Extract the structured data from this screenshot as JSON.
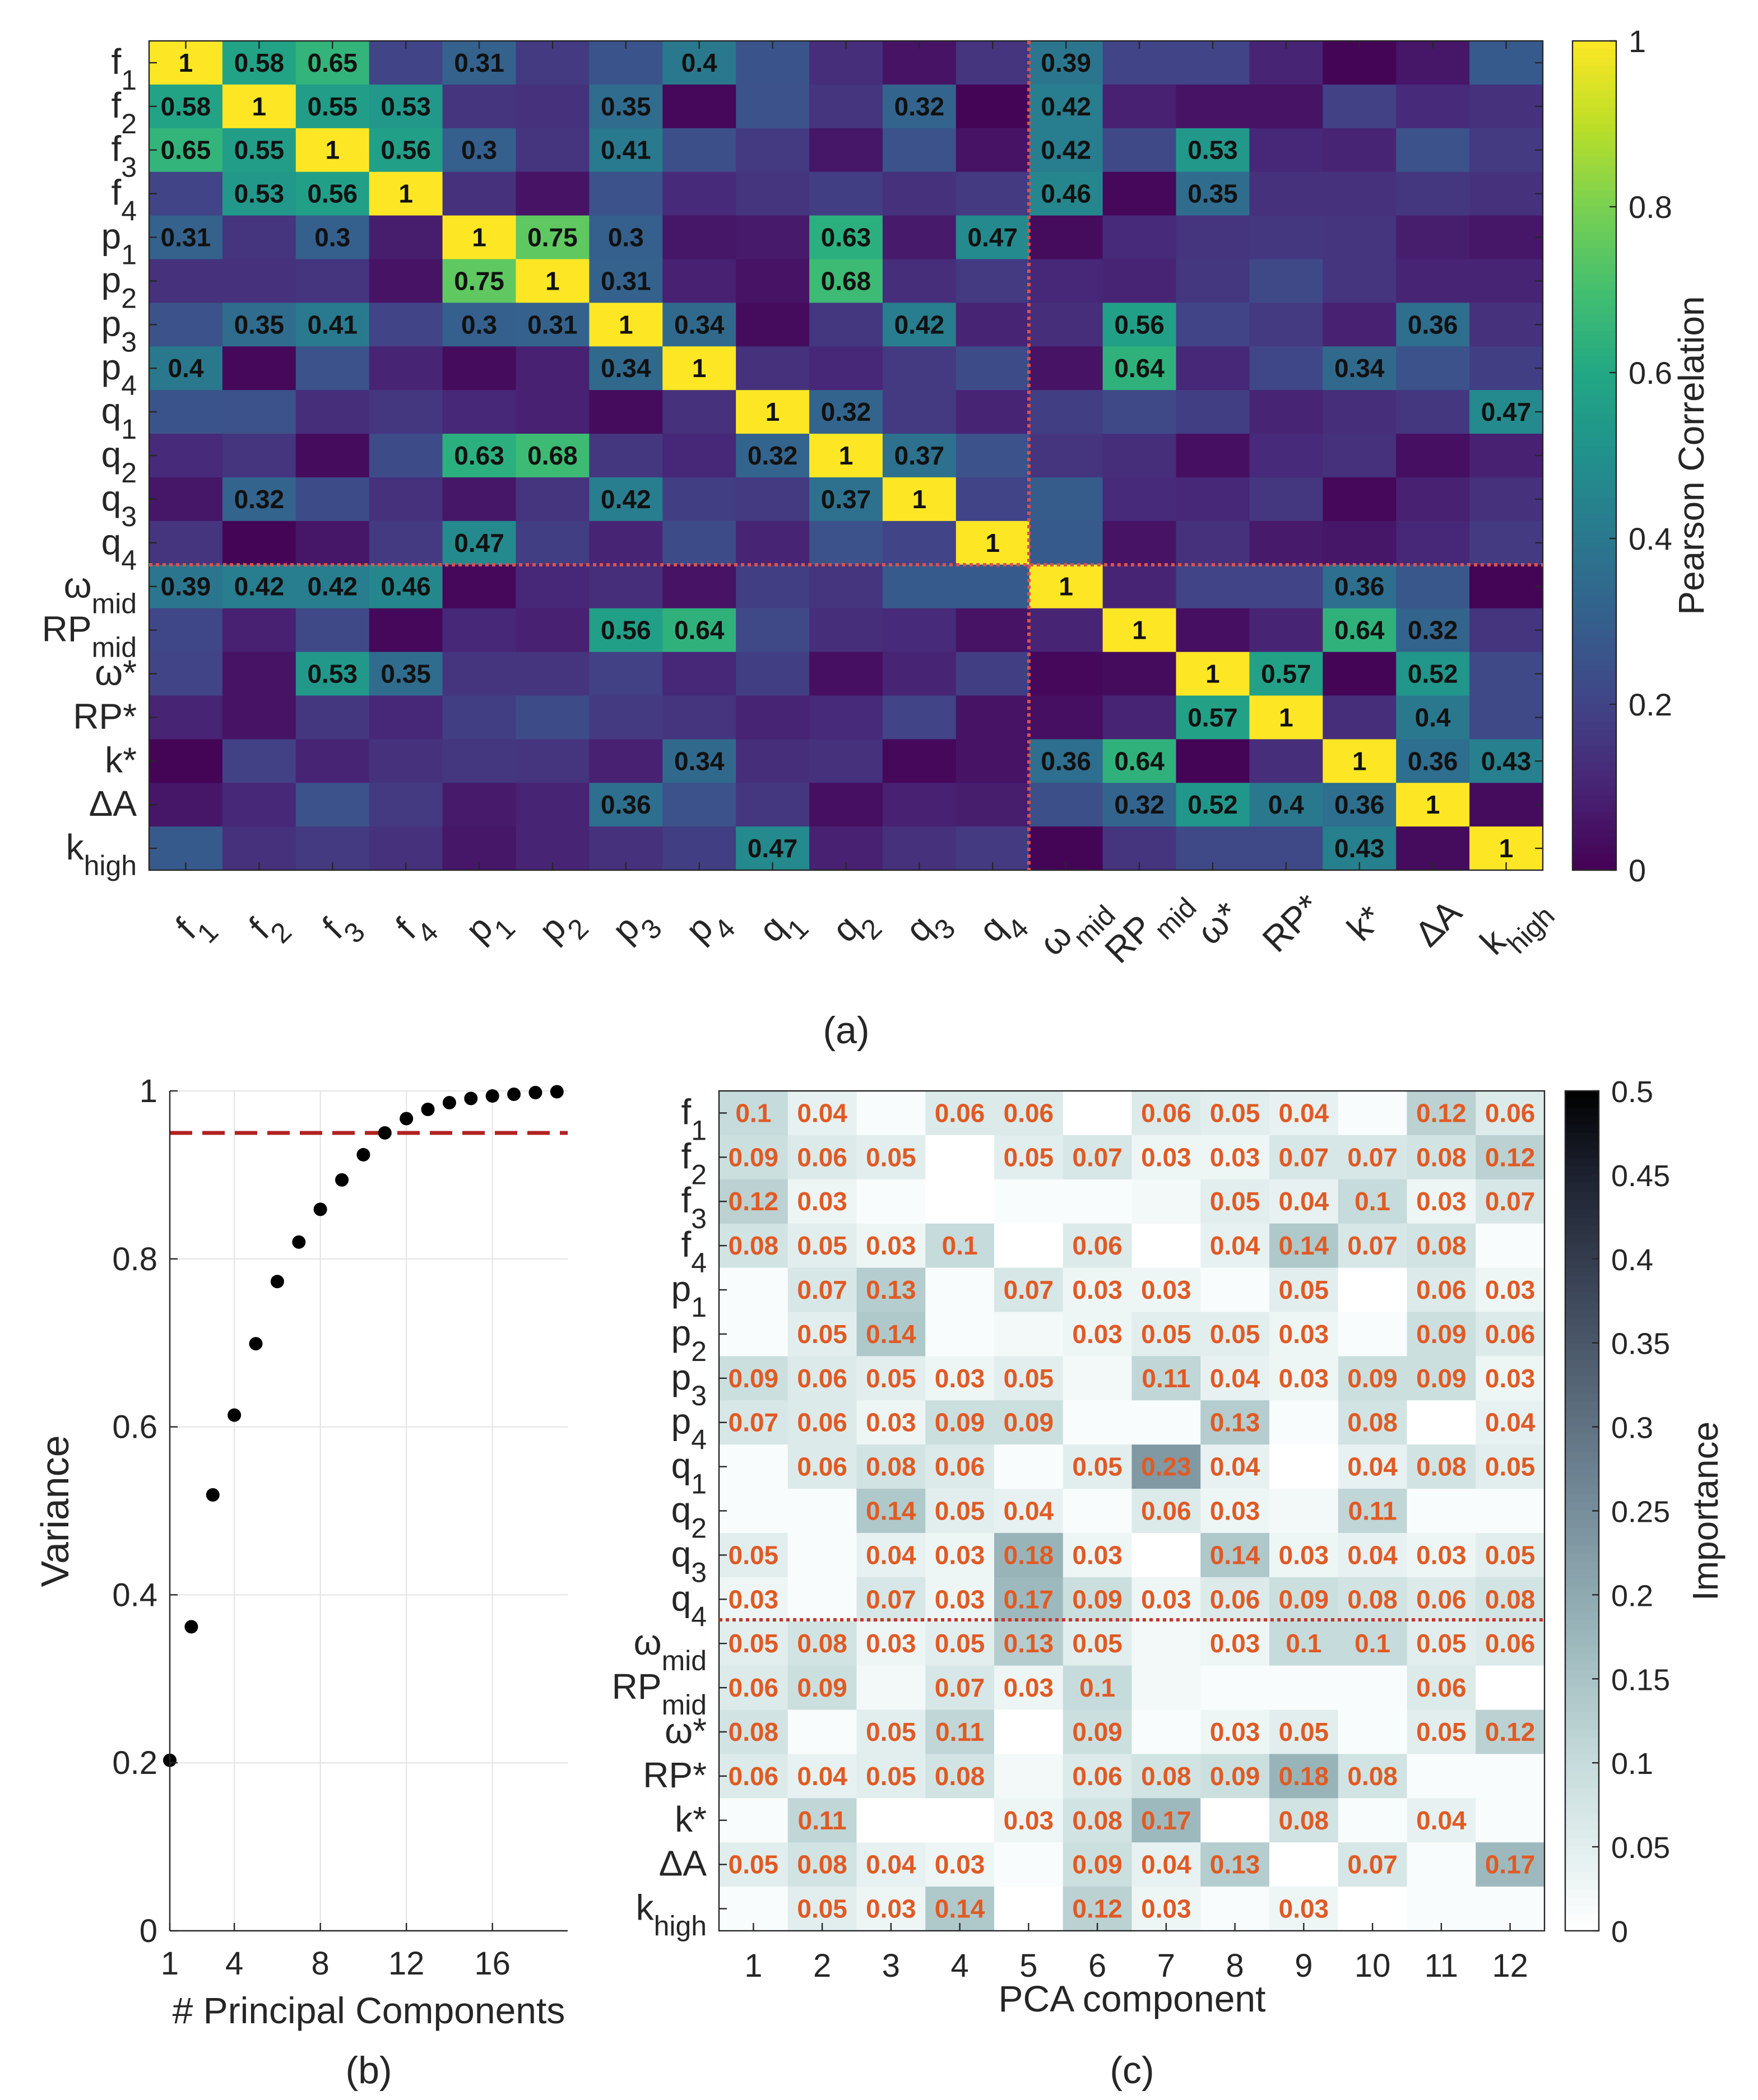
{
  "chart_data": [
    {
      "type": "heatmap",
      "panel_label": "(a)",
      "rows": [
        "f1",
        "f2",
        "f3",
        "f4",
        "p1",
        "p2",
        "p3",
        "p4",
        "q1",
        "q2",
        "q3",
        "q4",
        "ωmid",
        "RPmid",
        "ω*",
        "RP*",
        "k*",
        "ΔA",
        "khigh"
      ],
      "columns": [
        "f1",
        "f2",
        "f3",
        "f4",
        "p1",
        "p2",
        "p3",
        "p4",
        "q1",
        "q2",
        "q3",
        "q4",
        "ωmid",
        "RPmid",
        "ω*",
        "RP*",
        "k*",
        "ΔA",
        "khigh"
      ],
      "values": [
        [
          1,
          0.58,
          0.65,
          0.2,
          0.31,
          0.17,
          0.26,
          0.4,
          0.26,
          0.13,
          0.05,
          0.15,
          0.39,
          0.2,
          0.2,
          0.1,
          0.01,
          0.06,
          0.28
        ],
        [
          0.58,
          1,
          0.55,
          0.53,
          0.15,
          0.14,
          0.35,
          0.02,
          0.25,
          0.15,
          0.32,
          0.01,
          0.42,
          0.09,
          0.05,
          0.05,
          0.19,
          0.12,
          0.14
        ],
        [
          0.65,
          0.55,
          1,
          0.56,
          0.3,
          0.15,
          0.41,
          0.24,
          0.17,
          0.06,
          0.25,
          0.05,
          0.42,
          0.22,
          0.53,
          0.11,
          0.1,
          0.25,
          0.17
        ],
        [
          0.2,
          0.53,
          0.56,
          1,
          0.14,
          0.05,
          0.25,
          0.12,
          0.15,
          0.18,
          0.14,
          0.17,
          0.46,
          0.02,
          0.35,
          0.14,
          0.14,
          0.16,
          0.14
        ],
        [
          0.31,
          0.15,
          0.3,
          0.08,
          1,
          0.75,
          0.3,
          0.06,
          0.07,
          0.63,
          0.07,
          0.47,
          0.03,
          0.12,
          0.15,
          0.16,
          0.15,
          0.08,
          0.06
        ],
        [
          0.14,
          0.14,
          0.15,
          0.05,
          0.75,
          1,
          0.31,
          0.09,
          0.05,
          0.68,
          0.13,
          0.17,
          0.11,
          0.1,
          0.16,
          0.22,
          0.15,
          0.1,
          0.1
        ],
        [
          0.25,
          0.35,
          0.41,
          0.2,
          0.3,
          0.31,
          1,
          0.34,
          0.03,
          0.16,
          0.42,
          0.1,
          0.13,
          0.56,
          0.2,
          0.17,
          0.09,
          0.36,
          0.14
        ],
        [
          0.4,
          0.02,
          0.25,
          0.1,
          0.03,
          0.09,
          0.34,
          1,
          0.14,
          0.11,
          0.17,
          0.23,
          0.05,
          0.64,
          0.11,
          0.21,
          0.34,
          0.25,
          0.18
        ],
        [
          0.26,
          0.25,
          0.13,
          0.16,
          0.11,
          0.09,
          0.03,
          0.14,
          1,
          0.32,
          0.17,
          0.1,
          0.18,
          0.22,
          0.18,
          0.1,
          0.13,
          0.16,
          0.47
        ],
        [
          0.12,
          0.15,
          0.03,
          0.23,
          0.63,
          0.68,
          0.16,
          0.11,
          0.32,
          1,
          0.37,
          0.25,
          0.15,
          0.13,
          0.04,
          0.12,
          0.14,
          0.04,
          0.09
        ],
        [
          0.06,
          0.32,
          0.23,
          0.14,
          0.06,
          0.15,
          0.42,
          0.18,
          0.17,
          0.37,
          1,
          0.2,
          0.29,
          0.12,
          0.11,
          0.16,
          0.02,
          0.09,
          0.14
        ],
        [
          0.15,
          0.01,
          0.06,
          0.17,
          0.47,
          0.18,
          0.1,
          0.23,
          0.1,
          0.25,
          0.2,
          1,
          0.28,
          0.05,
          0.14,
          0.07,
          0.06,
          0.11,
          0.17
        ],
        [
          0.39,
          0.42,
          0.42,
          0.46,
          0.02,
          0.11,
          0.13,
          0.05,
          0.18,
          0.15,
          0.28,
          0.28,
          1,
          0.1,
          0.2,
          0.2,
          0.36,
          0.27,
          0.01
        ],
        [
          0.21,
          0.09,
          0.22,
          0.02,
          0.11,
          0.09,
          0.56,
          0.64,
          0.22,
          0.13,
          0.12,
          0.05,
          0.1,
          1,
          0.04,
          0.1,
          0.64,
          0.32,
          0.15
        ],
        [
          0.2,
          0.05,
          0.53,
          0.35,
          0.15,
          0.15,
          0.19,
          0.11,
          0.18,
          0.04,
          0.1,
          0.18,
          0.02,
          0.03,
          1,
          0.57,
          0.01,
          0.52,
          0.22
        ],
        [
          0.1,
          0.05,
          0.16,
          0.11,
          0.18,
          0.23,
          0.17,
          0.15,
          0.1,
          0.12,
          0.2,
          0.05,
          0.04,
          0.1,
          0.57,
          1,
          0.13,
          0.4,
          0.22
        ],
        [
          0.01,
          0.19,
          0.1,
          0.14,
          0.16,
          0.15,
          0.09,
          0.34,
          0.13,
          0.14,
          0.02,
          0.05,
          0.36,
          0.64,
          0.01,
          0.13,
          1,
          0.36,
          0.43
        ],
        [
          0.06,
          0.11,
          0.25,
          0.17,
          0.07,
          0.1,
          0.36,
          0.25,
          0.16,
          0.04,
          0.09,
          0.08,
          0.24,
          0.32,
          0.52,
          0.4,
          0.36,
          1,
          0.03
        ],
        [
          0.28,
          0.14,
          0.17,
          0.14,
          0.06,
          0.1,
          0.14,
          0.18,
          0.47,
          0.09,
          0.14,
          0.17,
          0.01,
          0.15,
          0.22,
          0.22,
          0.43,
          0.03,
          1
        ]
      ],
      "colorbar": {
        "label": "Pearson Correlation",
        "range": [
          0,
          1
        ],
        "ticks": [
          "0",
          "0.2",
          "0.4",
          "0.6",
          "0.8",
          "1"
        ],
        "colormap": "viridis"
      },
      "annotation_threshold": 0.3,
      "divider_after_index": 11,
      "divider_color": "#d9534f"
    },
    {
      "type": "scatter",
      "panel_label": "(b)",
      "x": [
        1,
        2,
        3,
        4,
        5,
        6,
        7,
        8,
        9,
        10,
        11,
        12,
        13,
        14,
        15,
        16,
        17,
        18,
        19
      ],
      "y": [
        0.203,
        0.362,
        0.519,
        0.614,
        0.699,
        0.773,
        0.82,
        0.859,
        0.894,
        0.924,
        0.95,
        0.967,
        0.978,
        0.986,
        0.991,
        0.994,
        0.996,
        0.998,
        0.999
      ],
      "xlabel": "# Principal Components",
      "ylabel": "Variance",
      "xlim": [
        1,
        19.5
      ],
      "ylim": [
        0,
        1
      ],
      "xticks": [
        "1",
        "4",
        "8",
        "12",
        "16"
      ],
      "xtick_values": [
        1,
        4,
        8,
        12,
        16
      ],
      "yticks": [
        "0",
        "0.2",
        "0.4",
        "0.6",
        "0.8",
        "1"
      ],
      "ytick_values": [
        0,
        0.2,
        0.4,
        0.6,
        0.8,
        1
      ],
      "grid": true,
      "reference_line": {
        "y": 0.95,
        "style": "dashed",
        "color": "#b22222"
      }
    },
    {
      "type": "heatmap",
      "panel_label": "(c)",
      "rows": [
        "f1",
        "f2",
        "f3",
        "f4",
        "p1",
        "p2",
        "p3",
        "p4",
        "q1",
        "q2",
        "q3",
        "q4",
        "ωmid",
        "RPmid",
        "ω*",
        "RP*",
        "k*",
        "ΔA",
        "khigh"
      ],
      "columns": [
        "1",
        "2",
        "3",
        "4",
        "5",
        "6",
        "7",
        "8",
        "9",
        "10",
        "11",
        "12"
      ],
      "values": [
        [
          0.1,
          0.04,
          0.01,
          0.06,
          0.06,
          0.0,
          0.06,
          0.05,
          0.04,
          0.01,
          0.12,
          0.06
        ],
        [
          0.09,
          0.06,
          0.05,
          0.0,
          0.05,
          0.07,
          0.03,
          0.03,
          0.07,
          0.07,
          0.08,
          0.12
        ],
        [
          0.12,
          0.03,
          0.01,
          0.0,
          0.01,
          0.01,
          0.02,
          0.05,
          0.04,
          0.1,
          0.03,
          0.07
        ],
        [
          0.08,
          0.05,
          0.03,
          0.1,
          0.0,
          0.06,
          0.0,
          0.04,
          0.14,
          0.07,
          0.08,
          0.01
        ],
        [
          0.01,
          0.07,
          0.13,
          0.01,
          0.07,
          0.03,
          0.03,
          0.01,
          0.05,
          0.0,
          0.06,
          0.03
        ],
        [
          0.01,
          0.05,
          0.14,
          0.01,
          0.02,
          0.03,
          0.05,
          0.05,
          0.03,
          0.01,
          0.09,
          0.06
        ],
        [
          0.09,
          0.06,
          0.05,
          0.03,
          0.05,
          0.02,
          0.11,
          0.04,
          0.03,
          0.09,
          0.09,
          0.03
        ],
        [
          0.07,
          0.06,
          0.03,
          0.09,
          0.09,
          0.01,
          0.01,
          0.13,
          0.01,
          0.08,
          0.0,
          0.04
        ],
        [
          0.01,
          0.06,
          0.08,
          0.06,
          0.01,
          0.05,
          0.23,
          0.04,
          0.0,
          0.04,
          0.08,
          0.05
        ],
        [
          0.01,
          0.01,
          0.14,
          0.05,
          0.04,
          0.01,
          0.06,
          0.03,
          0.02,
          0.11,
          0.01,
          0.01
        ],
        [
          0.05,
          0.01,
          0.04,
          0.03,
          0.18,
          0.03,
          0.0,
          0.14,
          0.03,
          0.04,
          0.03,
          0.05
        ],
        [
          0.03,
          0.01,
          0.07,
          0.03,
          0.17,
          0.09,
          0.03,
          0.06,
          0.09,
          0.08,
          0.06,
          0.08
        ],
        [
          0.05,
          0.08,
          0.03,
          0.05,
          0.13,
          0.05,
          0.02,
          0.03,
          0.1,
          0.1,
          0.05,
          0.06
        ],
        [
          0.06,
          0.09,
          0.02,
          0.07,
          0.03,
          0.1,
          0.02,
          0.01,
          0.01,
          0.01,
          0.06,
          0.0
        ],
        [
          0.08,
          0.01,
          0.05,
          0.11,
          0.0,
          0.09,
          0.01,
          0.03,
          0.05,
          0.01,
          0.05,
          0.12
        ],
        [
          0.06,
          0.04,
          0.05,
          0.08,
          0.02,
          0.06,
          0.08,
          0.09,
          0.18,
          0.08,
          0.01,
          0.01
        ],
        [
          0.01,
          0.11,
          0.0,
          0.0,
          0.03,
          0.08,
          0.17,
          0.0,
          0.08,
          0.01,
          0.04,
          0.01
        ],
        [
          0.05,
          0.08,
          0.04,
          0.03,
          0.01,
          0.09,
          0.04,
          0.13,
          0.0,
          0.07,
          0.01,
          0.17
        ],
        [
          0.01,
          0.05,
          0.03,
          0.14,
          0.0,
          0.12,
          0.03,
          0.01,
          0.03,
          0.0,
          0.01,
          0.01
        ]
      ],
      "xlabel": "PCA component",
      "colorbar": {
        "label": "Importance",
        "range": [
          0,
          0.5
        ],
        "ticks": [
          "0",
          "0.05",
          "0.1",
          "0.15",
          "0.2",
          "0.25",
          "0.3",
          "0.35",
          "0.4",
          "0.45",
          "0.5"
        ],
        "colormap": "bone-reversed"
      },
      "annotation_threshold": 0.025,
      "annotation_color": "#e05a24",
      "divider_after_index": 11,
      "divider_color": "#c0392b"
    }
  ]
}
